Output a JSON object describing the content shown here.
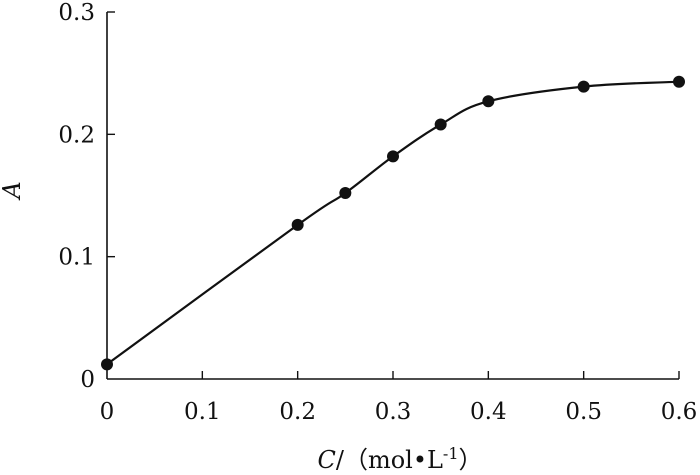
{
  "chart_data": {
    "type": "line",
    "x": [
      0,
      0.2,
      0.25,
      0.3,
      0.35,
      0.4,
      0.5,
      0.6
    ],
    "y": [
      0.012,
      0.126,
      0.152,
      0.182,
      0.208,
      0.227,
      0.239,
      0.243
    ],
    "xlim": [
      0,
      0.6
    ],
    "ylim": [
      0,
      0.3
    ],
    "xticks": [
      "0",
      "0.1",
      "0.2",
      "0.3",
      "0.4",
      "0.5",
      "0.6"
    ],
    "yticks": [
      "0",
      "0.1",
      "0.2",
      "0.3"
    ],
    "xlabel": {
      "symbol": "C",
      "rest": "/（mol•L",
      "exponent": "-1",
      "close": "）"
    },
    "ylabel": "A",
    "grid": false,
    "legend": "none"
  }
}
